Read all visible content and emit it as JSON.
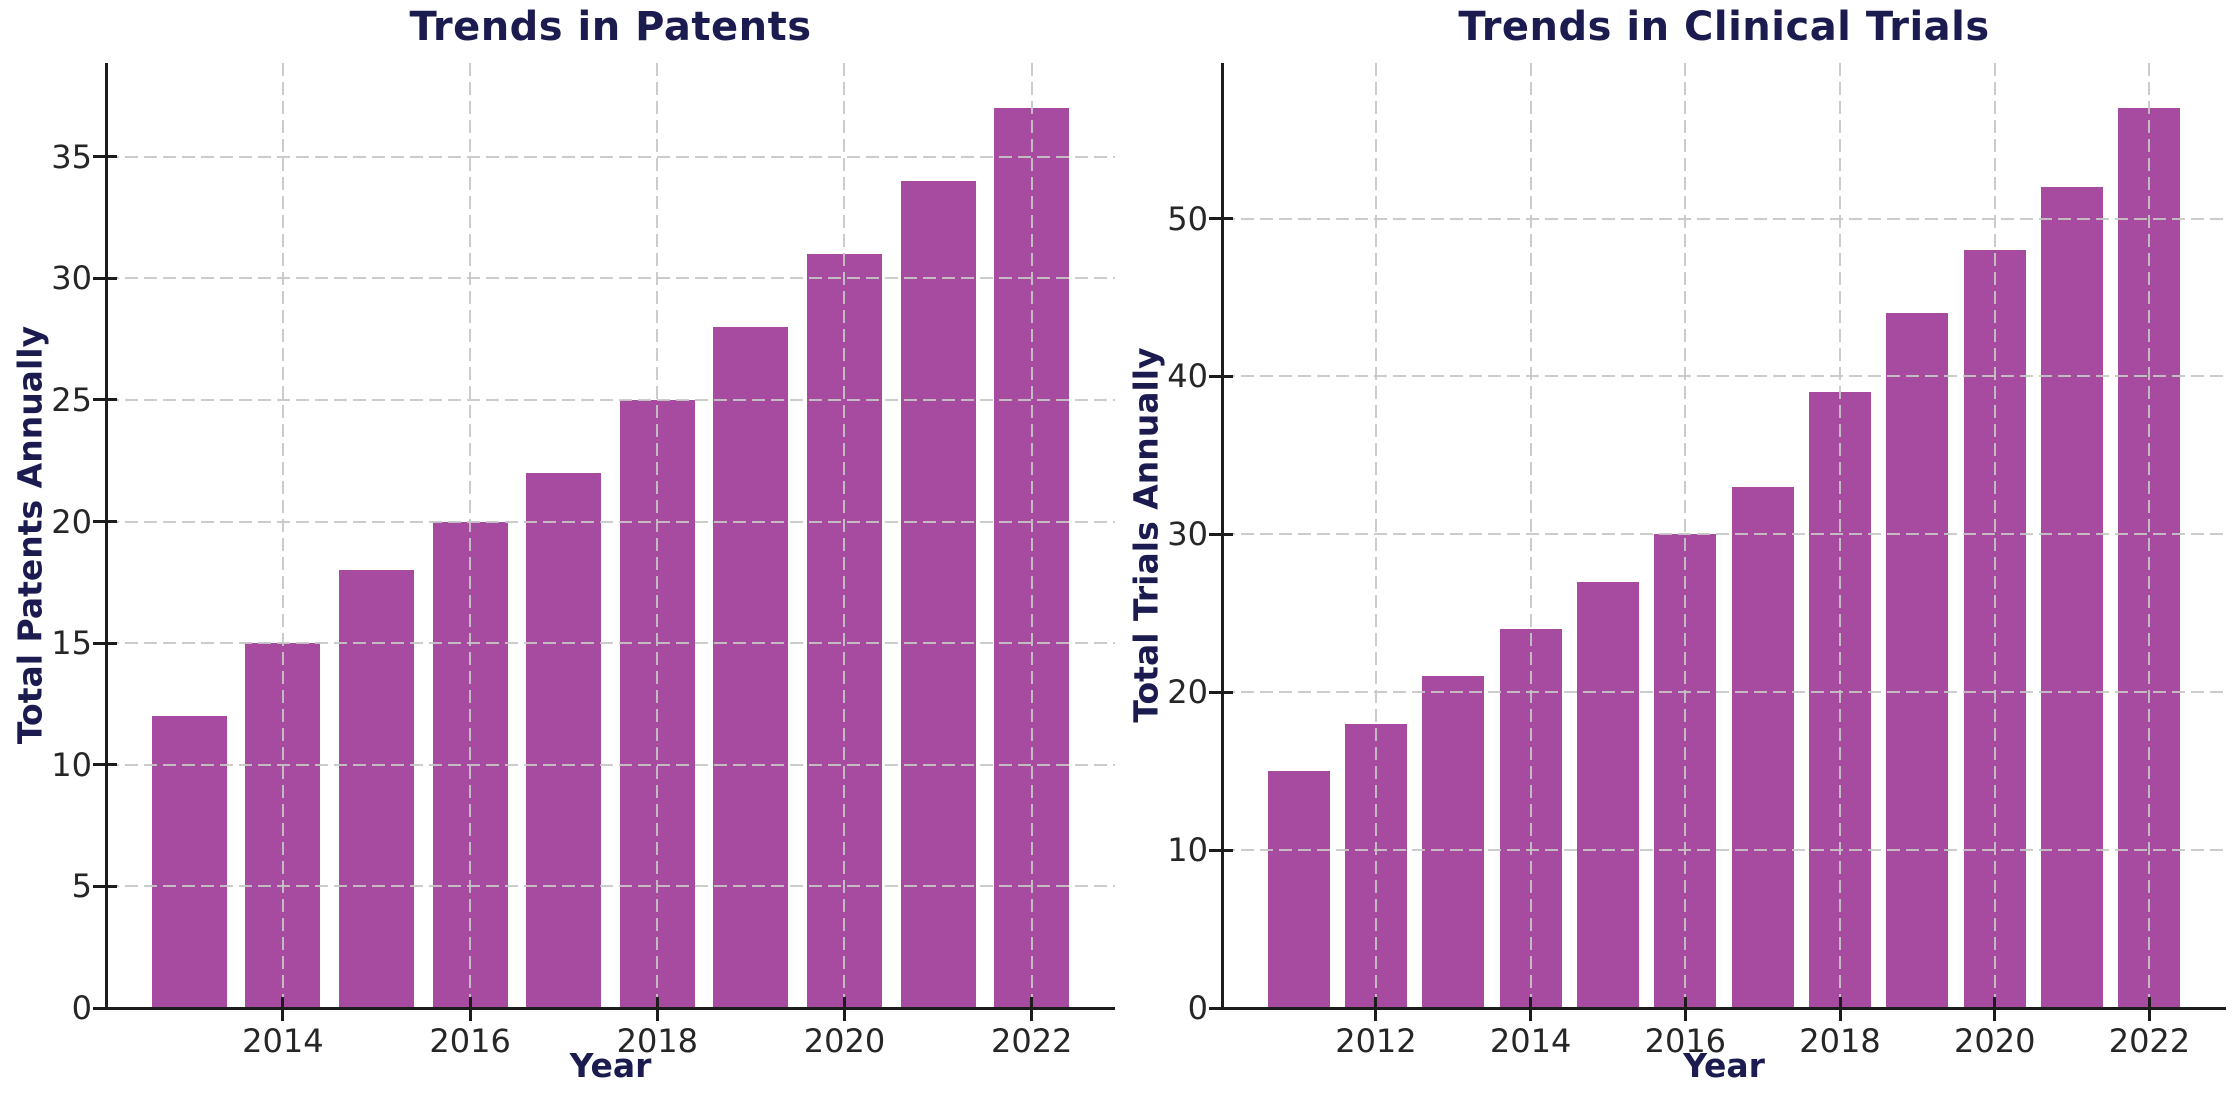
{
  "page": {
    "background_color": "#ffffff",
    "description": "Two side-by-side bar charts"
  },
  "colors": {
    "bar": "#a74ba0",
    "title": "#1b1b4f",
    "axis_label": "#1b1b4f",
    "tick_label": "#262626",
    "spine": "#1c1c1c",
    "grid": "rgba(198,198,198,0.9)"
  },
  "chart_data": [
    {
      "type": "bar",
      "title": "Trends in Patents",
      "xlabel": "Year",
      "ylabel": "Total Patents Annually",
      "categories": [
        2013,
        2014,
        2015,
        2016,
        2017,
        2018,
        2019,
        2020,
        2021,
        2022
      ],
      "values": [
        12,
        15,
        18,
        20,
        22,
        25,
        28,
        31,
        34,
        37
      ],
      "yticks": [
        0,
        5,
        10,
        15,
        20,
        25,
        30,
        35
      ],
      "xticks": [
        2014,
        2016,
        2018,
        2020,
        2022
      ],
      "ylim": [
        0,
        38.85
      ],
      "bar_width": 0.8,
      "grid": "dashed-both-axes",
      "legend_position": "none"
    },
    {
      "type": "bar",
      "title": "Trends in Clinical Trials",
      "xlabel": "Year",
      "ylabel": "Total Trials Annually",
      "categories": [
        2011,
        2012,
        2013,
        2014,
        2015,
        2016,
        2017,
        2018,
        2019,
        2020,
        2021,
        2022
      ],
      "values": [
        15,
        18,
        21,
        24,
        27,
        30,
        33,
        39,
        44,
        48,
        52,
        57
      ],
      "yticks": [
        0,
        10,
        20,
        30,
        40,
        50
      ],
      "xticks": [
        2012,
        2014,
        2016,
        2018,
        2020,
        2022
      ],
      "ylim": [
        0,
        59.85
      ],
      "bar_width": 0.8,
      "grid": "dashed-both-axes",
      "legend_position": "none"
    }
  ]
}
